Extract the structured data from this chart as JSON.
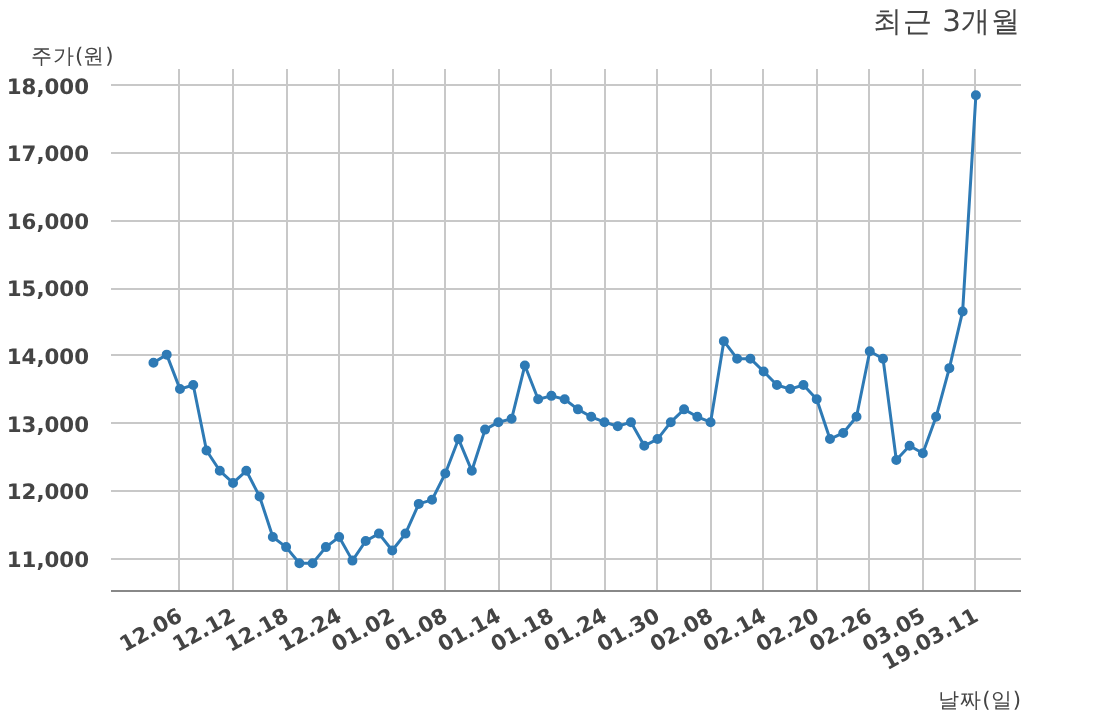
{
  "chart_data": {
    "type": "line",
    "title": "최근 3개월",
    "xlabel": "날짜(일)",
    "ylabel": "주가(원)",
    "categories": [
      null,
      null,
      "12.06",
      null,
      null,
      null,
      "12.12",
      null,
      null,
      null,
      "12.18",
      null,
      null,
      null,
      "12.24",
      null,
      null,
      null,
      "01.02",
      null,
      null,
      null,
      "01.08",
      null,
      null,
      null,
      "01.14",
      null,
      null,
      null,
      "01.18",
      null,
      null,
      null,
      "01.24",
      null,
      null,
      null,
      "01.30",
      null,
      null,
      null,
      "02.08",
      null,
      null,
      null,
      "02.14",
      null,
      null,
      null,
      "02.20",
      null,
      null,
      null,
      "02.26",
      null,
      null,
      null,
      "03.05",
      null,
      null,
      null,
      "19.03.11"
    ],
    "series": [
      {
        "color": "#2e7ab5",
        "values": [
          13900,
          14020,
          13510,
          13570,
          12600,
          12300,
          12120,
          12300,
          11920,
          11320,
          11170,
          10930,
          10930,
          11170,
          11320,
          10970,
          11260,
          11370,
          11120,
          11370,
          11810,
          11870,
          12260,
          12770,
          12300,
          12910,
          13020,
          13070,
          13860,
          13360,
          13410,
          13360,
          13210,
          13100,
          13020,
          12960,
          13020,
          12670,
          12770,
          13020,
          13210,
          13100,
          13020,
          14220,
          13960,
          13960,
          13770,
          13570,
          13510,
          13570,
          13360,
          12770,
          12860,
          13100,
          14070,
          13960,
          12460,
          12670,
          12560,
          13100,
          13820,
          14660,
          17860
        ]
      }
    ],
    "ylim": [
      10520,
      18250
    ],
    "yticks": [
      {
        "value": 11000,
        "label": "11,000"
      },
      {
        "value": 12000,
        "label": "12,000"
      },
      {
        "value": 13000,
        "label": "13,000"
      },
      {
        "value": 14000,
        "label": "14,000"
      },
      {
        "value": 15000,
        "label": "15,000"
      },
      {
        "value": 16000,
        "label": "16,000"
      },
      {
        "value": 17000,
        "label": "17,000"
      },
      {
        "value": 18000,
        "label": "18,000"
      }
    ],
    "grid": true,
    "marker": "circle",
    "line_style": "solid"
  }
}
